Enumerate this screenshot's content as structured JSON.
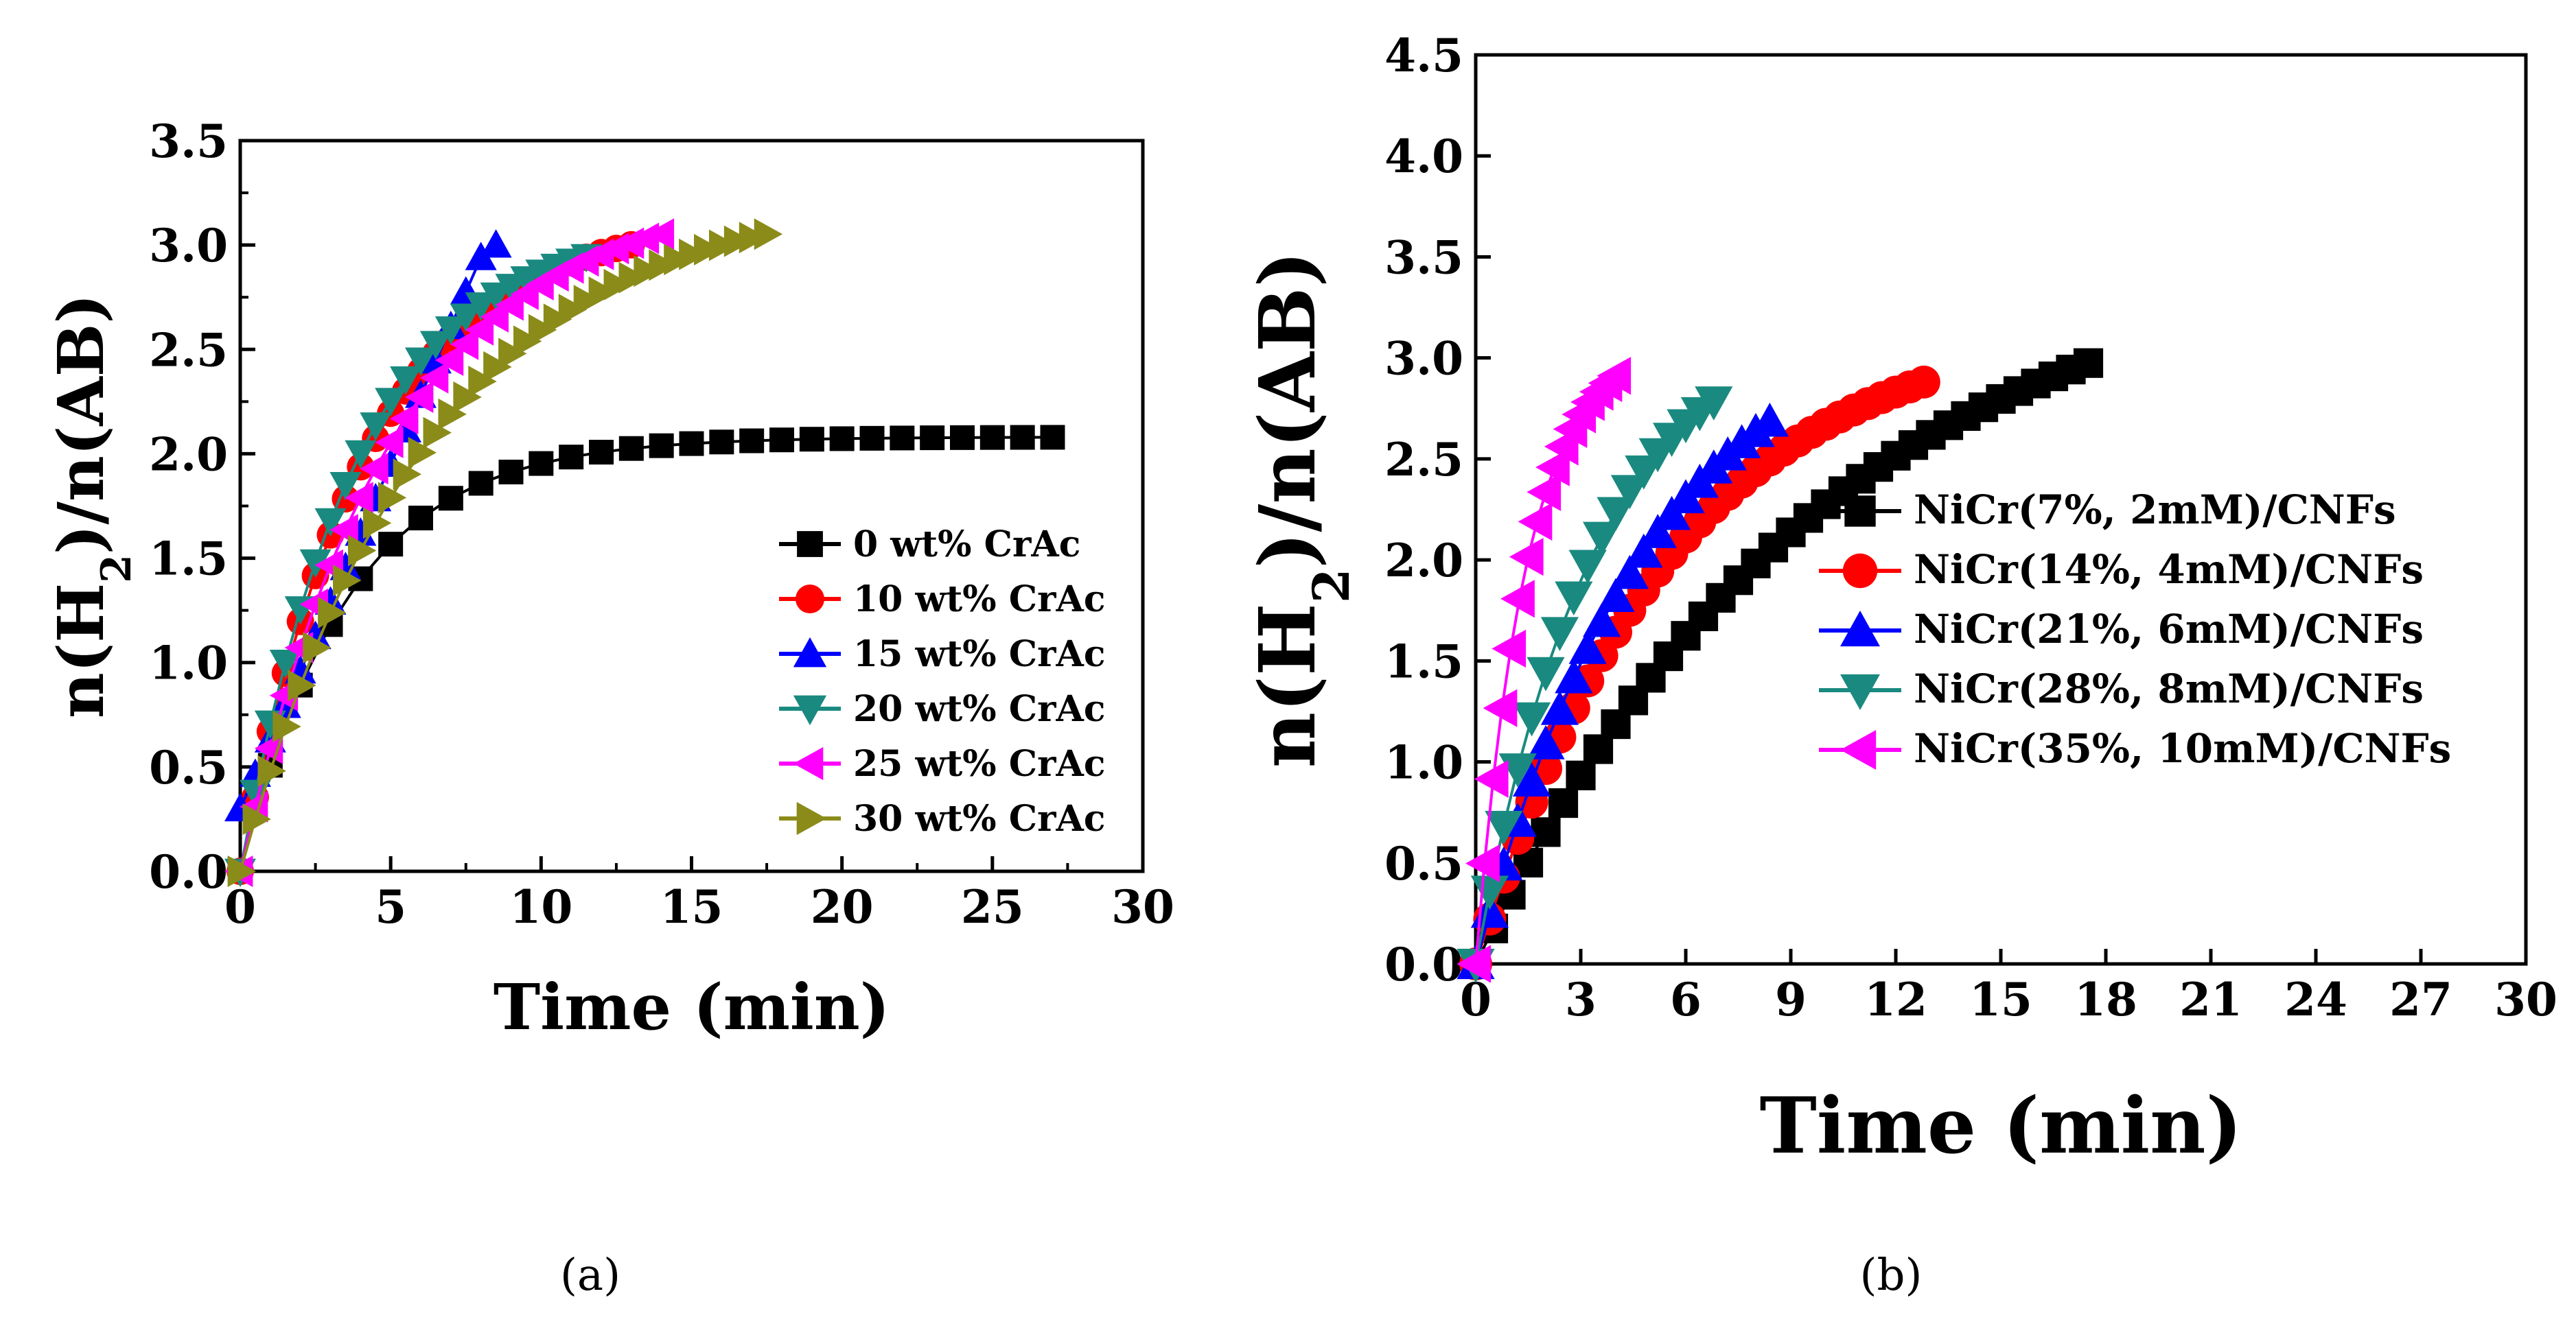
{
  "chart_data": [
    {
      "type": "scatter",
      "panel": "a",
      "panel_label": "(a)",
      "xlabel": "Time (min)",
      "ylabel_parts": [
        "n(H",
        "2",
        ")/n(AB)"
      ],
      "xlim": [
        0,
        30
      ],
      "ylim": [
        0,
        3.5
      ],
      "xticks": [
        0,
        5,
        10,
        15,
        20,
        25,
        30
      ],
      "yticks": [
        0.0,
        0.5,
        1.0,
        1.5,
        2.0,
        2.5,
        3.0,
        3.5
      ],
      "legend_position": "bottom-right",
      "series": [
        {
          "name": "0 wt% CrAc",
          "color": "#000000",
          "marker": "square",
          "rate": 0.28,
          "max": 2.08,
          "tend": 27.0,
          "step": 1.0,
          "start": 0.0
        },
        {
          "name": "10 wt% CrAc",
          "color": "#ff0000",
          "marker": "circle",
          "rate": 0.24,
          "max": 3.14,
          "tend": 13.0,
          "step": 0.5,
          "start": 0.0
        },
        {
          "name": "15 wt% CrAc",
          "color": "#0000ff",
          "marker": "triangle-up",
          "rate": 0.27,
          "max": 3.0,
          "tend": 8.5,
          "step": 0.5,
          "start": 0.0,
          "linear": true
        },
        {
          "name": "20 wt% CrAc",
          "color": "#1a8a80",
          "marker": "triangle-down",
          "rate": 0.26,
          "max": 3.1,
          "tend": 11.5,
          "step": 0.5,
          "start": 0.0
        },
        {
          "name": "25 wt% CrAc",
          "color": "#ff00ff",
          "marker": "triangle-left",
          "rate": 0.2,
          "max": 3.25,
          "tend": 14.0,
          "step": 0.5,
          "start": 0.0
        },
        {
          "name": "30 wt% CrAc",
          "color": "#8b8b1a",
          "marker": "triangle-right",
          "rate": 0.16,
          "max": 3.25,
          "tend": 17.5,
          "step": 0.5,
          "start": 0.0
        }
      ]
    },
    {
      "type": "scatter",
      "panel": "b",
      "panel_label": "(b)",
      "xlabel": "Time (min)",
      "ylabel_parts": [
        "n(H",
        "2",
        ")/n(AB)"
      ],
      "xlim": [
        0,
        30
      ],
      "ylim": [
        0,
        4.5
      ],
      "xticks": [
        0,
        3,
        6,
        9,
        12,
        15,
        18,
        21,
        24,
        27,
        30
      ],
      "yticks": [
        0.0,
        0.5,
        1.0,
        1.5,
        2.0,
        2.5,
        3.0,
        3.5,
        4.0,
        4.5
      ],
      "legend_position": "center-right",
      "series": [
        {
          "name": "NiCr(7%, 2mM)/CNFs",
          "color": "#000000",
          "marker": "square",
          "rate": 0.1,
          "max": 3.6,
          "tend": 17.5,
          "step": 0.5,
          "start": 0.0
        },
        {
          "name": "NiCr(14%, 4mM)/CNFs",
          "color": "#ff0000",
          "marker": "circle",
          "rate": 0.18,
          "max": 3.2,
          "tend": 13.0,
          "step": 0.4,
          "start": 0.0
        },
        {
          "name": "NiCr(21%, 6mM)/CNFs",
          "color": "#0000ff",
          "marker": "triangle-up",
          "rate": 0.2,
          "max": 3.3,
          "tend": 8.5,
          "step": 0.4,
          "start": 0.0
        },
        {
          "name": "NiCr(28%, 8mM)/CNFs",
          "color": "#1a8a80",
          "marker": "triangle-down",
          "rate": 0.3,
          "max": 3.2,
          "tend": 6.8,
          "step": 0.4,
          "start": 0.0
        },
        {
          "name": "NiCr(35%, 10mM)/CNFs",
          "color": "#ff00ff",
          "marker": "triangle-left",
          "rate": 0.7,
          "max": 3.1,
          "tend": 4.0,
          "step": 0.25,
          "start": 0.0
        }
      ]
    }
  ]
}
